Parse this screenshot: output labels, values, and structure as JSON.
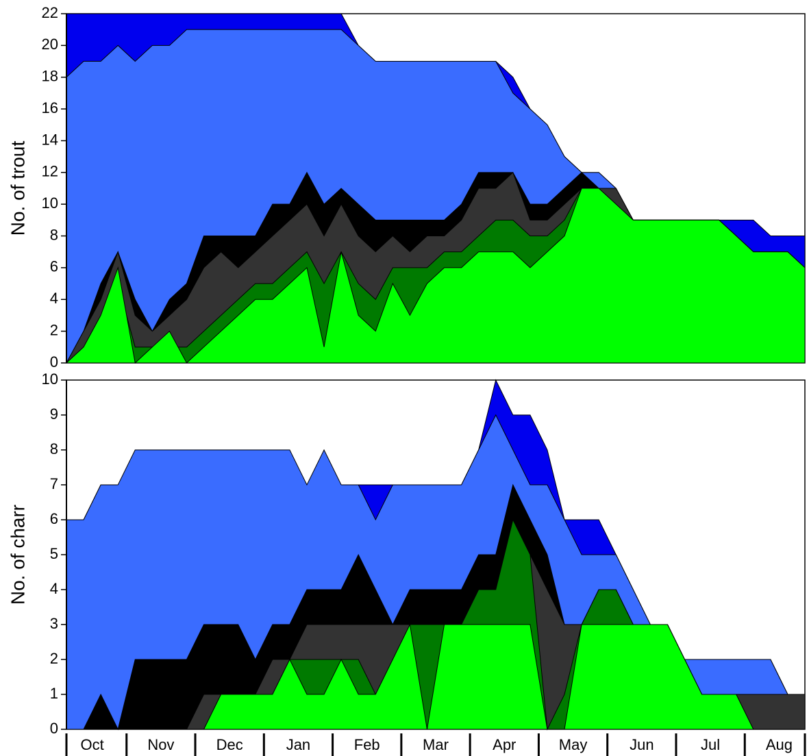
{
  "chart_data": [
    {
      "type": "area",
      "y_label": "No. of trout",
      "ylim": [
        0,
        22
      ],
      "yticks": [
        0,
        2,
        4,
        6,
        8,
        10,
        12,
        14,
        16,
        18,
        20,
        22
      ],
      "series": [
        {
          "color": "#0000ee",
          "values": [
            22,
            22,
            22,
            22,
            22,
            22,
            22,
            22,
            22,
            22,
            22,
            22,
            22,
            22,
            22,
            22,
            22,
            20,
            19,
            19,
            19,
            19,
            19,
            19,
            19,
            19,
            18,
            16,
            15,
            13,
            12,
            12,
            11,
            9,
            9,
            9,
            9,
            9,
            9,
            9,
            9,
            8,
            8,
            8
          ]
        },
        {
          "color": "#3a6cff",
          "values": [
            18,
            19,
            19,
            20,
            19,
            20,
            20,
            21,
            21,
            21,
            21,
            21,
            21,
            21,
            21,
            21,
            21,
            20,
            19,
            19,
            19,
            19,
            19,
            19,
            19,
            19,
            17,
            16,
            15,
            13,
            12,
            12,
            11,
            9,
            9,
            9,
            9,
            9,
            9,
            8,
            7,
            7,
            7,
            6
          ]
        },
        {
          "color": "#000000",
          "values": [
            0,
            2,
            5,
            7,
            4,
            2,
            4,
            5,
            8,
            8,
            8,
            8,
            10,
            10,
            12,
            10,
            11,
            10,
            9,
            9,
            9,
            9,
            9,
            10,
            12,
            12,
            12,
            10,
            10,
            11,
            12,
            11,
            11,
            9,
            9,
            9,
            9,
            9,
            9,
            8,
            7,
            7,
            7,
            6
          ]
        },
        {
          "color": "#333333",
          "values": [
            0,
            2,
            4,
            7,
            3,
            2,
            3,
            4,
            6,
            7,
            6,
            7,
            8,
            9,
            10,
            8,
            10,
            8,
            7,
            8,
            7,
            8,
            8,
            9,
            11,
            11,
            12,
            9,
            9,
            10,
            11,
            11,
            11,
            9,
            9,
            9,
            9,
            9,
            9,
            8,
            7,
            7,
            7,
            6
          ]
        },
        {
          "color": "#007a00",
          "values": [
            0,
            1,
            3,
            5,
            1,
            1,
            1,
            1,
            2,
            3,
            4,
            5,
            5,
            6,
            7,
            5,
            7,
            5,
            4,
            6,
            6,
            6,
            7,
            7,
            8,
            9,
            9,
            8,
            8,
            9,
            11,
            11,
            10,
            9,
            9,
            9,
            9,
            9,
            9,
            8,
            7,
            7,
            7,
            6
          ]
        },
        {
          "color": "#00ff00",
          "values": [
            0,
            1,
            3,
            6,
            0,
            1,
            2,
            0,
            1,
            2,
            3,
            4,
            4,
            5,
            6,
            1,
            7,
            3,
            2,
            5,
            3,
            5,
            6,
            6,
            7,
            7,
            7,
            6,
            7,
            8,
            11,
            11,
            10,
            9,
            9,
            9,
            9,
            9,
            9,
            8,
            7,
            7,
            7,
            6
          ]
        }
      ]
    },
    {
      "type": "area",
      "y_label": "No. of charr",
      "ylim": [
        0,
        10
      ],
      "yticks": [
        0,
        1,
        2,
        3,
        4,
        5,
        6,
        7,
        8,
        9,
        10
      ],
      "categories": [
        null,
        "Oct",
        null,
        null,
        null,
        "Nov",
        null,
        null,
        null,
        "Dec",
        null,
        null,
        null,
        "Jan",
        null,
        null,
        null,
        "Feb",
        null,
        null,
        null,
        "Mar",
        null,
        null,
        null,
        "Apr",
        null,
        null,
        null,
        "May",
        null,
        null,
        null,
        "Jun",
        null,
        null,
        null,
        "Jul",
        null,
        null,
        null,
        "Aug",
        null,
        null
      ],
      "series": [
        {
          "color": "#0000ee",
          "values": [
            6,
            6,
            7,
            7,
            7,
            7,
            7,
            7,
            7,
            7,
            7,
            7,
            7,
            7,
            7,
            7,
            7,
            7,
            7,
            7,
            7,
            7,
            7,
            7,
            8,
            10,
            9,
            9,
            8,
            6,
            6,
            6,
            5,
            4,
            3,
            3,
            2,
            2,
            2,
            2,
            2,
            2,
            1,
            1
          ]
        },
        {
          "color": "#3a6cff",
          "values": [
            6,
            6,
            7,
            7,
            8,
            8,
            8,
            8,
            8,
            8,
            8,
            8,
            8,
            8,
            7,
            8,
            7,
            7,
            6,
            7,
            7,
            7,
            7,
            7,
            8,
            9,
            8,
            7,
            7,
            6,
            5,
            5,
            5,
            4,
            3,
            3,
            2,
            2,
            2,
            2,
            2,
            2,
            1,
            1
          ]
        },
        {
          "color": "#000000",
          "values": [
            0,
            0,
            1,
            0,
            2,
            2,
            2,
            2,
            3,
            3,
            3,
            2,
            3,
            3,
            4,
            4,
            4,
            5,
            4,
            3,
            4,
            4,
            4,
            4,
            5,
            5,
            7,
            6,
            5,
            3,
            3,
            4,
            4,
            3,
            3,
            3,
            2,
            1,
            1,
            1,
            1,
            1,
            1,
            1
          ]
        },
        {
          "color": "#333333",
          "values": [
            0,
            0,
            0,
            0,
            0,
            0,
            0,
            0,
            1,
            1,
            1,
            1,
            2,
            2,
            3,
            3,
            3,
            3,
            3,
            3,
            3,
            3,
            3,
            3,
            4,
            4,
            6,
            5,
            4,
            3,
            3,
            4,
            4,
            3,
            3,
            3,
            2,
            1,
            1,
            1,
            1,
            1,
            1,
            1
          ]
        },
        {
          "color": "#007a00",
          "values": [
            0,
            0,
            0,
            0,
            0,
            0,
            0,
            0,
            0,
            1,
            1,
            1,
            1,
            2,
            2,
            2,
            2,
            2,
            1,
            2,
            3,
            3,
            3,
            3,
            4,
            4,
            6,
            5,
            0,
            1,
            3,
            4,
            4,
            3,
            3,
            3,
            2,
            1,
            1,
            1,
            0,
            0,
            0,
            0
          ]
        },
        {
          "color": "#00ff00",
          "values": [
            0,
            0,
            0,
            0,
            0,
            0,
            0,
            0,
            0,
            1,
            1,
            1,
            1,
            2,
            1,
            1,
            2,
            1,
            1,
            2,
            3,
            0,
            3,
            3,
            3,
            3,
            3,
            3,
            0,
            0,
            3,
            3,
            3,
            3,
            3,
            3,
            2,
            1,
            1,
            1,
            0,
            0,
            0,
            0
          ]
        }
      ]
    }
  ]
}
